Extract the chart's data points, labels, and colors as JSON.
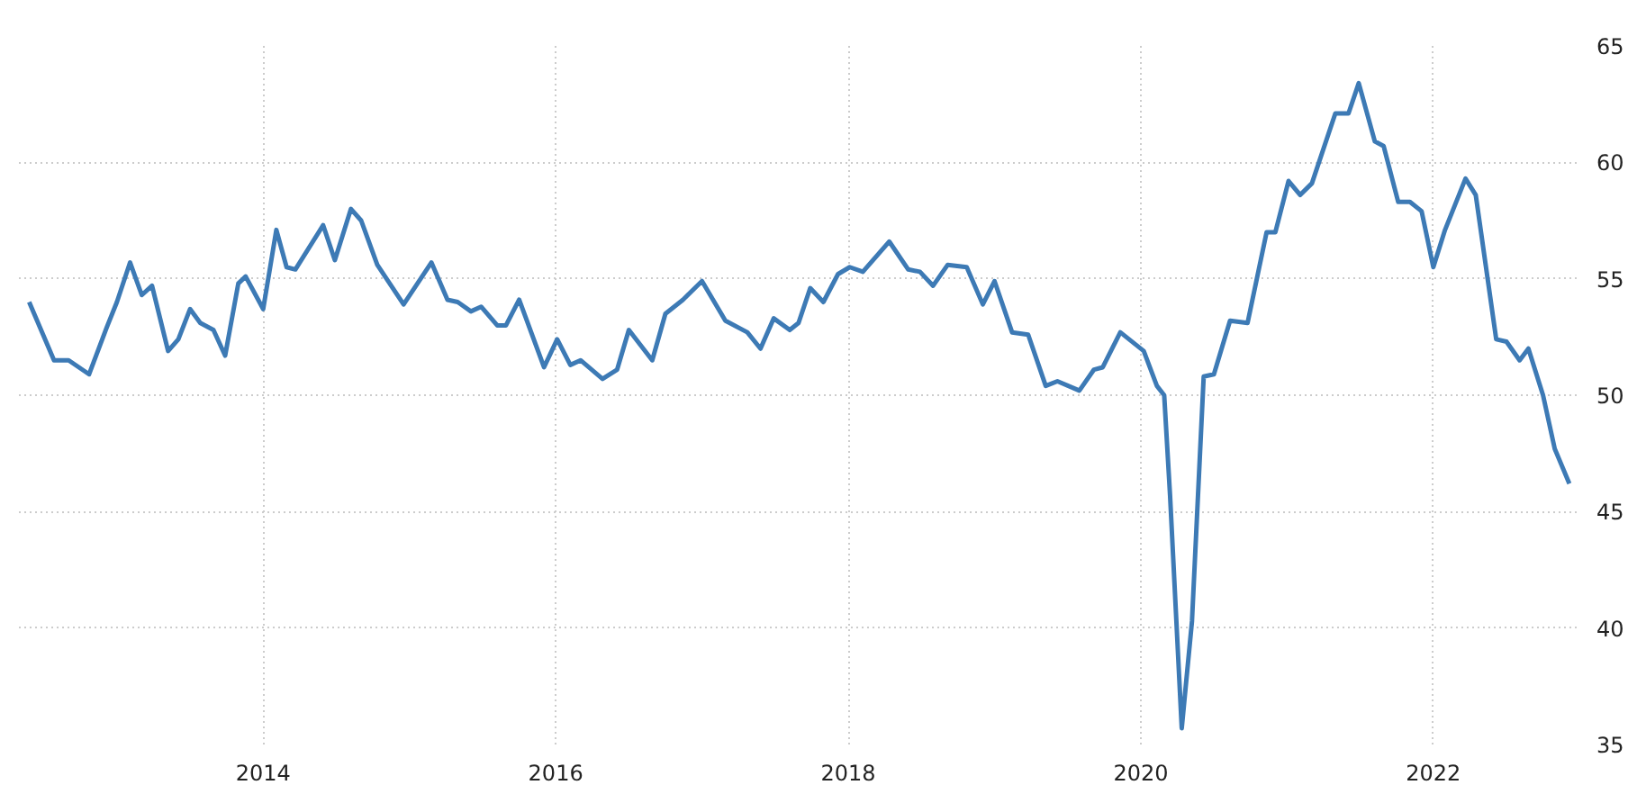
{
  "chart_data": {
    "type": "line",
    "color": "#3d7ab5",
    "line_style": "solid",
    "grid": true,
    "x": [
      2012.4,
      2012.57,
      2012.67,
      2012.81,
      2012.93,
      2013.0,
      2013.09,
      2013.17,
      2013.24,
      2013.35,
      2013.42,
      2013.5,
      2013.57,
      2013.66,
      2013.74,
      2013.83,
      2013.88,
      2014.0,
      2014.09,
      2014.16,
      2014.22,
      2014.41,
      2014.49,
      2014.6,
      2014.67,
      2014.78,
      2014.96,
      2015.15,
      2015.26,
      2015.33,
      2015.42,
      2015.49,
      2015.6,
      2015.66,
      2015.75,
      2015.92,
      2016.01,
      2016.1,
      2016.17,
      2016.32,
      2016.42,
      2016.5,
      2016.66,
      2016.75,
      2016.87,
      2017.0,
      2017.16,
      2017.31,
      2017.4,
      2017.49,
      2017.6,
      2017.66,
      2017.74,
      2017.83,
      2017.93,
      2018.01,
      2018.1,
      2018.28,
      2018.41,
      2018.49,
      2018.58,
      2018.68,
      2018.81,
      2018.92,
      2019.0,
      2019.12,
      2019.23,
      2019.35,
      2019.43,
      2019.58,
      2019.68,
      2019.74,
      2019.86,
      2020.02,
      2020.11,
      2020.16,
      2020.2,
      2020.28,
      2020.35,
      2020.43,
      2020.5,
      2020.61,
      2020.73,
      2020.86,
      2020.92,
      2021.01,
      2021.09,
      2021.17,
      2021.33,
      2021.42,
      2021.49,
      2021.6,
      2021.66,
      2021.76,
      2021.84,
      2021.92,
      2022.0,
      2022.08,
      2022.22,
      2022.29,
      2022.43,
      2022.5,
      2022.59,
      2022.65,
      2022.75,
      2022.83,
      2022.93
    ],
    "values": [
      54.0,
      51.5,
      51.5,
      50.9,
      52.9,
      54.0,
      55.7,
      54.3,
      54.7,
      51.9,
      52.4,
      53.7,
      53.1,
      52.8,
      51.7,
      54.8,
      55.1,
      53.7,
      57.1,
      55.5,
      55.4,
      57.3,
      55.8,
      58.0,
      57.5,
      55.6,
      53.9,
      55.7,
      54.1,
      54.0,
      53.6,
      53.8,
      53.0,
      53.0,
      54.1,
      51.2,
      52.4,
      51.3,
      51.5,
      50.7,
      51.1,
      52.8,
      51.5,
      53.5,
      54.1,
      54.9,
      53.2,
      52.7,
      52.0,
      53.3,
      52.8,
      53.1,
      54.6,
      54.0,
      55.2,
      55.5,
      55.3,
      56.6,
      55.4,
      55.3,
      54.7,
      55.6,
      55.5,
      53.9,
      54.9,
      52.7,
      52.6,
      50.4,
      50.6,
      50.2,
      51.1,
      51.2,
      52.7,
      51.9,
      50.4,
      50.0,
      45.7,
      35.7,
      40.3,
      50.8,
      50.9,
      53.2,
      53.1,
      57.0,
      57.0,
      59.2,
      58.6,
      59.1,
      62.1,
      62.1,
      63.4,
      60.9,
      60.7,
      58.3,
      58.3,
      57.9,
      55.5,
      57.1,
      59.3,
      58.6,
      52.4,
      52.3,
      51.5,
      52.0,
      50.0,
      47.7,
      46.2
    ],
    "xlim": [
      2012.33,
      2022.98
    ],
    "ylim": [
      35,
      65
    ],
    "xticks": [
      2014,
      2016,
      2018,
      2020,
      2022
    ],
    "yticks": [
      35,
      40,
      45,
      50,
      55,
      60,
      65
    ]
  }
}
